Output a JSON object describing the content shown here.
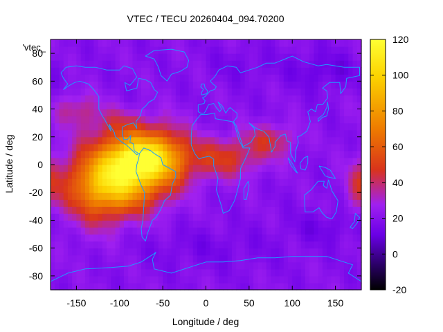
{
  "chart_data": {
    "type": "heatmap",
    "title": "VTEC / TECU 20260404_094.70200",
    "xlabel": "Longitude / deg",
    "ylabel": "Latitude / deg",
    "xlim": [
      -180,
      180
    ],
    "ylim": [
      -90,
      90
    ],
    "x_ticks": [
      -150,
      -100,
      -50,
      0,
      50,
      100,
      150
    ],
    "y_ticks": [
      -80,
      -60,
      -40,
      -20,
      0,
      20,
      40,
      60,
      80
    ],
    "colorbar": {
      "range": [
        -20,
        120
      ],
      "ticks": [
        -20,
        0,
        20,
        40,
        60,
        80,
        100,
        120
      ],
      "colors": [
        "#000000",
        "#2a0066",
        "#6a00e6",
        "#a020f0",
        "#d9341b",
        "#ee7a00",
        "#fcd200",
        "#ffff33"
      ],
      "color_positions": [
        0,
        0.1,
        0.22,
        0.34,
        0.48,
        0.64,
        0.85,
        1
      ]
    },
    "series": [
      {
        "name": "'vtec_",
        "grid_step_deg": 5,
        "background": 20,
        "features": [
          {
            "lon": -80,
            "lat": 5,
            "peak": 84,
            "sx": 26,
            "sy": 12
          },
          {
            "lon": -100,
            "lat": -15,
            "peak": 58,
            "sx": 32,
            "sy": 14
          },
          {
            "lon": -130,
            "lat": -12,
            "peak": 30,
            "sx": 26,
            "sy": 22
          },
          {
            "lon": -45,
            "lat": 5,
            "peak": 34,
            "sx": 22,
            "sy": 16
          },
          {
            "lon": 20,
            "lat": 5,
            "peak": 28,
            "sx": 30,
            "sy": 10
          },
          {
            "lon": 75,
            "lat": 18,
            "peak": 22,
            "sx": 20,
            "sy": 8
          },
          {
            "lon": -150,
            "lat": 40,
            "peak": 16,
            "sx": 18,
            "sy": 8
          },
          {
            "lon": -100,
            "lat": 30,
            "peak": 14,
            "sx": 24,
            "sy": 8
          },
          {
            "lon": 178,
            "lat": -15,
            "peak": 18,
            "sx": 12,
            "sy": 12
          },
          {
            "lon": 135,
            "lat": 68,
            "peak": -9,
            "sx": 30,
            "sy": 9
          },
          {
            "lon": 40,
            "lat": 72,
            "peak": -5,
            "sx": 25,
            "sy": 8
          },
          {
            "lon": 140,
            "lat": -45,
            "peak": -7,
            "sx": 30,
            "sy": 8
          },
          {
            "lon": 0,
            "lat": -60,
            "peak": -5,
            "sx": 60,
            "sy": 10
          }
        ]
      }
    ],
    "overlay": "coastlines"
  }
}
